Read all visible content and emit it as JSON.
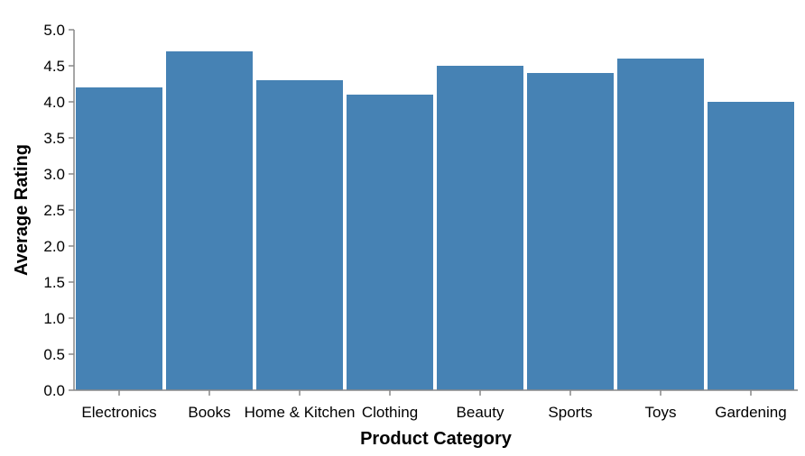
{
  "chart_data": {
    "type": "bar",
    "categories": [
      "Electronics",
      "Books",
      "Home & Kitchen",
      "Clothing",
      "Beauty",
      "Sports",
      "Toys",
      "Gardening"
    ],
    "values": [
      4.2,
      4.7,
      4.3,
      4.1,
      4.5,
      4.4,
      4.6,
      4.0
    ],
    "title": "",
    "xlabel": "Product Category",
    "ylabel": "Average Rating",
    "ylim": [
      0,
      5
    ],
    "yticks": [
      "0.0",
      "0.5",
      "1.0",
      "1.5",
      "2.0",
      "2.5",
      "3.0",
      "3.5",
      "4.0",
      "4.5",
      "5.0"
    ],
    "grid": false,
    "bar_color": "#4682b4"
  }
}
